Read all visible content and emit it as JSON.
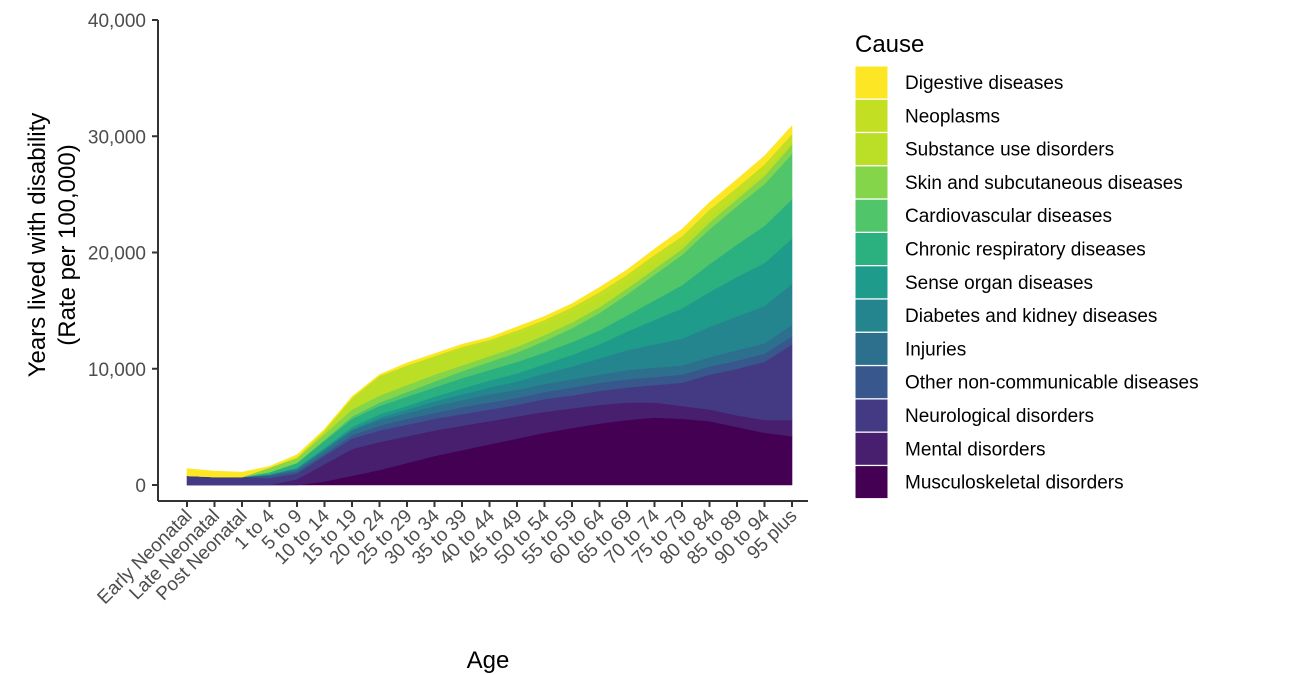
{
  "chart_data": {
    "type": "area",
    "stacked": true,
    "xlabel": "Age",
    "ylabel_line1": "Years lived with disability",
    "ylabel_line2": "(Rate per 100,000)",
    "ylim": [
      0,
      40000
    ],
    "yticks": [
      0,
      10000,
      20000,
      30000,
      40000
    ],
    "ytick_labels": [
      "0",
      "10,000",
      "20,000",
      "30,000",
      "40,000"
    ],
    "grid": false,
    "legend_position": "right",
    "legend_title": "Cause",
    "categories": [
      "Early Neonatal",
      "Late Neonatal",
      "Post Neonatal",
      "1 to 4",
      "5 to 9",
      "10 to 14",
      "15 to 19",
      "20 to 24",
      "25 to 29",
      "30 to 34",
      "35 to 39",
      "40 to 44",
      "45 to 49",
      "50 to 54",
      "55 to 59",
      "60 to 64",
      "65 to 69",
      "70 to 74",
      "75 to 79",
      "80 to 84",
      "85 to 89",
      "90 to 94",
      "95 plus"
    ],
    "series": [
      {
        "name": "Musculoskeletal disorders",
        "color": "#440154",
        "values": [
          0,
          0,
          0,
          0,
          0,
          300,
          800,
          1300,
          1900,
          2500,
          3000,
          3500,
          4000,
          4500,
          4900,
          5300,
          5600,
          5800,
          5700,
          5500,
          5000,
          4500,
          4200
        ]
      },
      {
        "name": "Mental disorders",
        "color": "#481E6F",
        "values": [
          0,
          0,
          0,
          0,
          500,
          1500,
          2300,
          2400,
          2300,
          2200,
          2100,
          2000,
          1900,
          1800,
          1700,
          1600,
          1500,
          1300,
          1100,
          1000,
          1000,
          1100,
          1400
        ]
      },
      {
        "name": "Neurological disorders",
        "color": "#433A83",
        "values": [
          800,
          700,
          700,
          600,
          500,
          700,
          900,
          1000,
          1000,
          1000,
          1000,
          1000,
          1000,
          1100,
          1100,
          1200,
          1300,
          1500,
          2000,
          3000,
          4000,
          5000,
          6500
        ]
      },
      {
        "name": "Other non-communicable diseases",
        "color": "#38578C",
        "values": [
          0,
          0,
          0,
          200,
          200,
          200,
          300,
          400,
          500,
          500,
          600,
          600,
          600,
          600,
          700,
          700,
          700,
          700,
          700,
          700,
          700,
          700,
          700
        ]
      },
      {
        "name": "Injuries",
        "color": "#2D708E",
        "values": [
          0,
          0,
          0,
          100,
          200,
          300,
          400,
          500,
          500,
          600,
          600,
          700,
          700,
          700,
          700,
          700,
          800,
          800,
          800,
          800,
          900,
          900,
          1000
        ]
      },
      {
        "name": "Diabetes and kidney diseases",
        "color": "#25858E",
        "values": [
          0,
          0,
          0,
          0,
          0,
          100,
          100,
          200,
          300,
          400,
          500,
          600,
          700,
          900,
          1100,
          1400,
          1700,
          2000,
          2300,
          2600,
          2900,
          3200,
          3500
        ]
      },
      {
        "name": "Sense organ diseases",
        "color": "#1E9B8A",
        "values": [
          0,
          0,
          0,
          0,
          100,
          100,
          200,
          300,
          300,
          400,
          500,
          600,
          700,
          800,
          1000,
          1200,
          1600,
          2100,
          2600,
          3000,
          3400,
          3700,
          3900
        ]
      },
      {
        "name": "Chronic respiratory diseases",
        "color": "#2BB07F",
        "values": [
          0,
          0,
          0,
          200,
          400,
          600,
          700,
          700,
          800,
          800,
          900,
          900,
          1000,
          1000,
          1100,
          1200,
          1400,
          1700,
          2000,
          2400,
          2800,
          3200,
          3400
        ]
      },
      {
        "name": "Cardiovascular diseases",
        "color": "#51C56A",
        "values": [
          0,
          0,
          0,
          0,
          0,
          100,
          200,
          300,
          400,
          500,
          600,
          700,
          800,
          1000,
          1200,
          1500,
          1800,
          2200,
          2600,
          3000,
          3300,
          3600,
          3900
        ]
      },
      {
        "name": "Skin and subcutaneous diseases",
        "color": "#85D54A",
        "values": [
          0,
          0,
          0,
          400,
          400,
          500,
          600,
          600,
          600,
          600,
          500,
          500,
          500,
          500,
          500,
          500,
          500,
          500,
          500,
          600,
          600,
          700,
          800
        ]
      },
      {
        "name": "Substance use disorders",
        "color": "#BBDF27",
        "values": [
          0,
          0,
          0,
          0,
          100,
          300,
          900,
          1600,
          1600,
          1500,
          1400,
          1200,
          1100,
          1000,
          900,
          800,
          700,
          600,
          500,
          400,
          300,
          300,
          200
        ]
      },
      {
        "name": "Neoplasms",
        "color": "#C2DF23",
        "values": [
          0,
          0,
          0,
          0,
          0,
          0,
          100,
          100,
          100,
          100,
          200,
          200,
          300,
          300,
          400,
          500,
          500,
          600,
          600,
          700,
          700,
          700,
          700
        ]
      },
      {
        "name": "Digestive diseases",
        "color": "#FDE725",
        "values": [
          600,
          500,
          400,
          100,
          200,
          100,
          100,
          100,
          200,
          200,
          200,
          200,
          300,
          300,
          300,
          400,
          400,
          500,
          600,
          600,
          700,
          700,
          700
        ]
      }
    ]
  }
}
